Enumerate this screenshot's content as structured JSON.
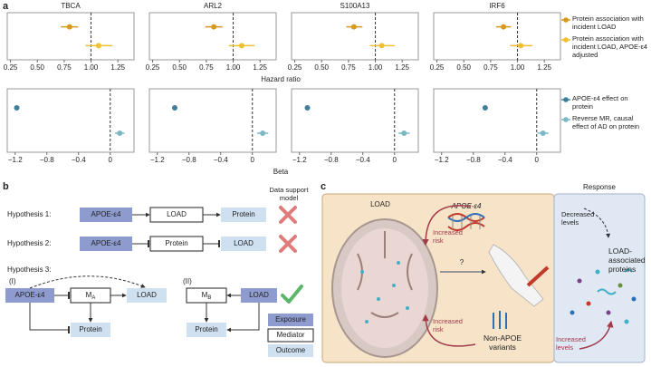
{
  "panel_a": {
    "label": "a",
    "x_label_top": "Hazard ratio",
    "x_label_bottom": "Beta",
    "legend_top": [
      {
        "name": "Protein association with incident LOAD",
        "color": "#d89a1e"
      },
      {
        "name": "Protein association with incident LOAD, APOE-ε4 adjusted",
        "color": "#f0c030"
      }
    ],
    "legend_bottom": [
      {
        "name": "APOE-ε4 effect on protein",
        "color": "#3f7f99"
      },
      {
        "name": "Reverse MR, causal effect of AD on protein",
        "color": "#7bb8c4"
      }
    ]
  },
  "chart_data": [
    {
      "type": "forest",
      "title": "TBCA",
      "xlim": [
        0.22,
        1.4
      ],
      "xticks": [
        0.25,
        {
          "value": 0.5,
          "label": "0.50"
        },
        0.75,
        {
          "value": 1,
          "label": "1.00"
        },
        1.25
      ],
      "reference": 1,
      "series": [
        {
          "color": "#d89a1e",
          "value": 0.8,
          "ci": [
            0.72,
            0.88
          ]
        },
        {
          "color": "#f0c030",
          "value": 1.07,
          "ci": [
            0.95,
            1.2
          ]
        }
      ]
    },
    {
      "type": "forest",
      "title": "ARL2",
      "xlim": [
        0.22,
        1.4
      ],
      "xticks": [
        0.25,
        {
          "value": 0.5,
          "label": "0.50"
        },
        0.75,
        {
          "value": 1,
          "label": "1.00"
        },
        1.25
      ],
      "reference": 1,
      "series": [
        {
          "color": "#d89a1e",
          "value": 0.82,
          "ci": [
            0.74,
            0.9
          ]
        },
        {
          "color": "#f0c030",
          "value": 1.08,
          "ci": [
            0.96,
            1.2
          ]
        }
      ]
    },
    {
      "type": "forest",
      "title": "S100A13",
      "xlim": [
        0.22,
        1.4
      ],
      "xticks": [
        0.25,
        {
          "value": 0.5,
          "label": "0.50"
        },
        0.75,
        {
          "value": 1,
          "label": "1.00"
        },
        1.25
      ],
      "reference": 1,
      "series": [
        {
          "color": "#d89a1e",
          "value": 0.8,
          "ci": [
            0.73,
            0.88
          ]
        },
        {
          "color": "#f0c030",
          "value": 1.06,
          "ci": [
            0.95,
            1.18
          ]
        }
      ]
    },
    {
      "type": "forest",
      "title": "IRF6",
      "xlim": [
        0.22,
        1.4
      ],
      "xticks": [
        0.25,
        {
          "value": 0.5,
          "label": "0.50"
        },
        0.75,
        {
          "value": 1,
          "label": "1.00"
        },
        1.25
      ],
      "reference": 1,
      "series": [
        {
          "color": "#d89a1e",
          "value": 0.87,
          "ci": [
            0.8,
            0.94
          ]
        },
        {
          "color": "#f0c030",
          "value": 1.03,
          "ci": [
            0.93,
            1.14
          ]
        }
      ]
    },
    {
      "type": "forest",
      "xlim": [
        -1.3,
        0.3
      ],
      "xticks": [
        {
          "value": -1.2,
          "label": "−1.2"
        },
        {
          "value": -0.8,
          "label": "−0.8"
        },
        {
          "value": -0.4,
          "label": "−0.4"
        },
        0
      ],
      "reference": 0,
      "series": [
        {
          "color": "#3f7f99",
          "value": -1.18,
          "ci": [
            -1.2,
            -1.16
          ]
        },
        {
          "color": "#7bb8c4",
          "value": 0.12,
          "ci": [
            0.06,
            0.18
          ]
        }
      ]
    },
    {
      "type": "forest",
      "xlim": [
        -1.3,
        0.3
      ],
      "xticks": [
        {
          "value": -1.2,
          "label": "−1.2"
        },
        {
          "value": -0.8,
          "label": "−0.8"
        },
        {
          "value": -0.4,
          "label": "−0.4"
        },
        0
      ],
      "reference": 0,
      "series": [
        {
          "color": "#3f7f99",
          "value": -0.98,
          "ci": [
            -1.0,
            -0.96
          ]
        },
        {
          "color": "#7bb8c4",
          "value": 0.13,
          "ci": [
            0.06,
            0.2
          ]
        }
      ]
    },
    {
      "type": "forest",
      "xlim": [
        -1.3,
        0.3
      ],
      "xticks": [
        {
          "value": -1.2,
          "label": "−1.2"
        },
        {
          "value": -0.8,
          "label": "−0.8"
        },
        {
          "value": -0.4,
          "label": "−0.4"
        },
        0
      ],
      "reference": 0,
      "series": [
        {
          "color": "#3f7f99",
          "value": -1.1,
          "ci": [
            -1.12,
            -1.08
          ]
        },
        {
          "color": "#7bb8c4",
          "value": 0.12,
          "ci": [
            0.05,
            0.19
          ]
        }
      ]
    },
    {
      "type": "forest",
      "xlim": [
        -1.3,
        0.3
      ],
      "xticks": [
        {
          "value": -1.2,
          "label": "−1.2"
        },
        {
          "value": -0.8,
          "label": "−0.8"
        },
        {
          "value": -0.4,
          "label": "−0.4"
        },
        0
      ],
      "reference": 0,
      "series": [
        {
          "color": "#3f7f99",
          "value": -0.65,
          "ci": [
            -0.67,
            -0.63
          ]
        },
        {
          "color": "#7bb8c4",
          "value": 0.08,
          "ci": [
            0.01,
            0.15
          ]
        }
      ]
    }
  ],
  "panel_b": {
    "label": "b",
    "support_header": "Data support model",
    "hypotheses": [
      {
        "label": "Hypothesis 1:",
        "nodes": [
          "APOE-ε4",
          "LOAD",
          "Protein"
        ]
      },
      {
        "label": "Hypothesis 2:",
        "nodes": [
          "APOE-ε4",
          "Protein",
          "LOAD"
        ]
      }
    ],
    "hypothesis3": {
      "label": "Hypothesis 3:",
      "model1": {
        "label": "(I)",
        "exposure": "APOE-ε4",
        "mediator": "M",
        "mediator_sub": "A",
        "outcome": "LOAD",
        "protein": "Protein"
      },
      "model2": {
        "label": "(II)",
        "mediator": "M",
        "mediator_sub": "B",
        "exposure": "LOAD",
        "outcome": "Protein"
      }
    },
    "legend": [
      "Exposure",
      "Mediator",
      "Outcome"
    ]
  },
  "panel_c": {
    "label": "c",
    "load_title": "LOAD",
    "response_title": "Response",
    "gene": "APOE-ε4",
    "question": "?",
    "risk_top": "Increased risk",
    "risk_bottom": "Increased risk",
    "variants": "Non-APOE variants",
    "decreased": "Decreased levels",
    "proteins": "LOAD-associated proteins",
    "increased": "Increased levels"
  }
}
